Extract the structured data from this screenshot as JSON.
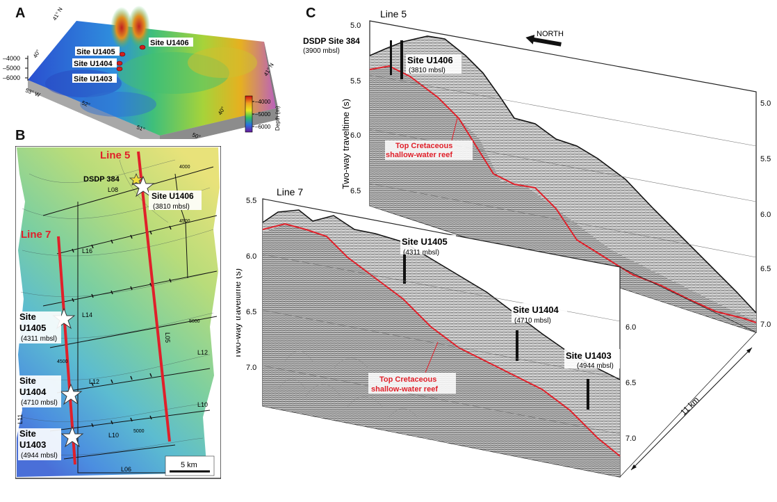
{
  "panel_a": {
    "letter": "A",
    "sites": [
      "Site U1405",
      "Site U1404",
      "Site U1403",
      "Site U1406"
    ],
    "depth_ticks": [
      "–4000",
      "–5000",
      "–6000"
    ],
    "lat_labels": [
      "41° N",
      "40°",
      "41° N",
      "40°"
    ],
    "lon_labels": [
      "53° W",
      "52°",
      "51°",
      "50°"
    ],
    "colorbar": {
      "ticks": [
        "–4000",
        "–5000",
        "–6000"
      ],
      "label": "Depth (m)"
    }
  },
  "panel_b": {
    "letter": "B",
    "line5_label": "Line 5",
    "line7_label": "Line 7",
    "dsdp": "DSDP 384",
    "site_u1406": {
      "name": "Site U1406",
      "depth": "(3810 mbsl)"
    },
    "site_u1405": {
      "name1": "Site",
      "name2": "U1405",
      "depth": "(4311 mbsl)"
    },
    "site_u1404": {
      "name1": "Site",
      "name2": "U1404",
      "depth": "(4710 mbsl)"
    },
    "site_u1403": {
      "name1": "Site",
      "name2": "U1403",
      "depth": "(4944 mbsl)"
    },
    "line_labels": [
      "L08",
      "L16",
      "L14",
      "L12",
      "L12",
      "L10",
      "L10",
      "L06",
      "L05",
      "L11"
    ],
    "contours": [
      "4000",
      "4500",
      "5000",
      "5000",
      "4500"
    ],
    "scale": "5 km"
  },
  "panel_c": {
    "letter": "C",
    "line5": {
      "title": "Line 5",
      "north": "NORTH",
      "dsdp_name": "DSDP Site 384",
      "dsdp_depth": "(3900 mbsl)",
      "site_name": "Site U1406",
      "site_depth": "(3810 mbsl)",
      "reef_1": "Top Cretaceous",
      "reef_2": "shallow-water reef",
      "ylabel": "Two-way traveltime (s)",
      "left_ticks": [
        "5.0",
        "5.5",
        "6.0",
        "6.5"
      ],
      "right_ticks": [
        "5.0",
        "5.5",
        "6.0",
        "6.5",
        "7.0"
      ]
    },
    "line7": {
      "title": "Line 7",
      "ylabel": "Two-way traveltime (s)",
      "left_ticks": [
        "5.5",
        "6.0",
        "6.5",
        "7.0"
      ],
      "right_ticks": [
        "6.0",
        "6.5",
        "7.0"
      ],
      "site_u1405": {
        "name": "Site U1405",
        "depth": "(4311 mbsl)"
      },
      "site_u1404": {
        "name": "Site U1404",
        "depth": "(4710 mbsl)"
      },
      "site_u1403": {
        "name": "Site U1403",
        "depth": "(4944 mbsl)"
      },
      "reef_1": "Top Cretaceous",
      "reef_2": "shallow-water reef"
    },
    "distance": "11 km"
  },
  "colors": {
    "red": "#e0202a",
    "seismic": "#9a9a9a"
  }
}
